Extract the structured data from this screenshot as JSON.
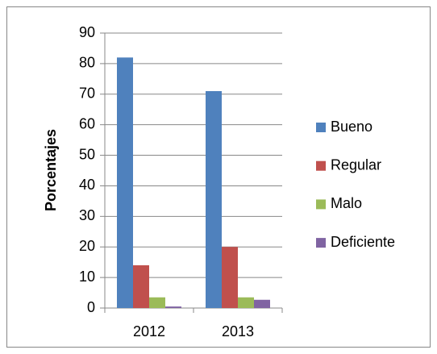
{
  "chart_data": {
    "type": "bar",
    "y_label": "Porcentajes",
    "categories": [
      "2012",
      "2013"
    ],
    "series": [
      {
        "name": "Bueno",
        "color": "#4f81bd",
        "values": [
          82,
          71
        ]
      },
      {
        "name": "Regular",
        "color": "#c0504d",
        "values": [
          14,
          20
        ]
      },
      {
        "name": "Malo",
        "color": "#9bbb59",
        "values": [
          3.5,
          3.5
        ]
      },
      {
        "name": "Deficiente",
        "color": "#8064a2",
        "values": [
          0.5,
          2.7
        ]
      }
    ],
    "ylim": [
      0,
      90
    ],
    "yticks": [
      0,
      10,
      20,
      30,
      40,
      50,
      60,
      70,
      80,
      90
    ],
    "grid": true,
    "legend": "right"
  }
}
